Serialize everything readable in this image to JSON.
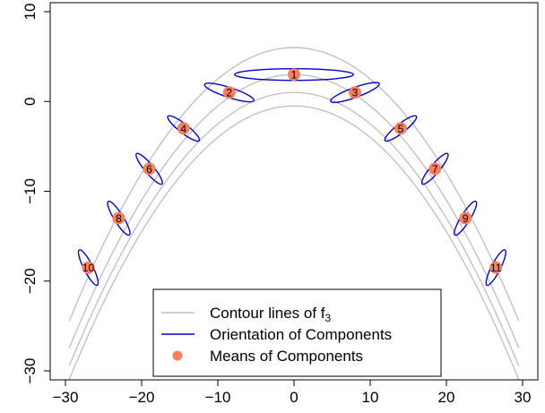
{
  "chart_data": {
    "type": "scatter",
    "title": "",
    "xlabel": "",
    "ylabel": "",
    "xlim": [
      -32,
      32
    ],
    "ylim": [
      -31,
      11
    ],
    "x_ticks": [
      -30,
      -20,
      -10,
      0,
      10,
      20,
      30
    ],
    "y_ticks": [
      -30,
      -20,
      -10,
      0,
      10
    ],
    "grid": false,
    "legend": {
      "placement": "bottom-center",
      "entries": [
        {
          "label_main": "Contour lines of f",
          "label_sub": "3",
          "style": "line",
          "color": "#BEBEBE"
        },
        {
          "label_main": "Orientation of Components",
          "label_sub": "",
          "style": "line",
          "color": "#0000CD"
        },
        {
          "label_main": "Means of Components",
          "label_sub": "",
          "style": "point",
          "color": "#FA8060"
        }
      ]
    },
    "contour_curves": [
      {
        "a": 0.035,
        "c": 6
      },
      {
        "a": 0.035,
        "c": 3
      },
      {
        "a": 0.035,
        "c": 1
      },
      {
        "a": 0.035,
        "c": -0.5
      }
    ],
    "contour_x_range": [
      -29.5,
      29.5
    ],
    "components": [
      {
        "label": "1",
        "x": 0,
        "y": 3,
        "rx": 7.8,
        "ry": 0.65,
        "angle_deg": 0
      },
      {
        "label": "2",
        "x": -8.5,
        "y": 1,
        "rx": 3.4,
        "ry": 0.55,
        "angle_deg": 18
      },
      {
        "label": "3",
        "x": 8,
        "y": 1,
        "rx": 3.4,
        "ry": 0.55,
        "angle_deg": -20
      },
      {
        "label": "4",
        "x": -14.5,
        "y": -3,
        "rx": 2.6,
        "ry": 0.5,
        "angle_deg": 38
      },
      {
        "label": "5",
        "x": 14,
        "y": -3,
        "rx": 2.6,
        "ry": 0.5,
        "angle_deg": -38
      },
      {
        "label": "6",
        "x": -19,
        "y": -7.5,
        "rx": 2.6,
        "ry": 0.5,
        "angle_deg": 50
      },
      {
        "label": "7",
        "x": 18.5,
        "y": -7.5,
        "rx": 2.6,
        "ry": 0.5,
        "angle_deg": -50
      },
      {
        "label": "8",
        "x": -23,
        "y": -13,
        "rx": 2.6,
        "ry": 0.5,
        "angle_deg": 58
      },
      {
        "label": "9",
        "x": 22.5,
        "y": -13,
        "rx": 2.6,
        "ry": 0.5,
        "angle_deg": -58
      },
      {
        "label": "10",
        "x": -27,
        "y": -18.5,
        "rx": 2.6,
        "ry": 0.5,
        "angle_deg": 63
      },
      {
        "label": "11",
        "x": 26.5,
        "y": -18.5,
        "rx": 2.6,
        "ry": 0.5,
        "angle_deg": -63
      }
    ]
  },
  "colors": {
    "contour": "#BEBEBE",
    "ellipse": "#0000CD",
    "mean": "#FA8060",
    "axis": "#000000"
  }
}
